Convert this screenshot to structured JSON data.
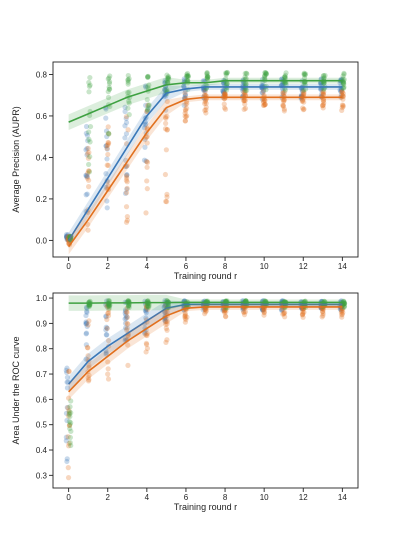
{
  "colors": {
    "blue": "#3a78b8",
    "orange": "#e1701e",
    "green": "#3ea141"
  },
  "chart_data": [
    {
      "type": "scatter",
      "xlabel": "Training round r",
      "ylabel": "Average Precision (AUPR)",
      "xlim": [
        -0.8,
        14.8
      ],
      "ylim": [
        -0.08,
        0.86
      ],
      "xticks": [
        0,
        2,
        4,
        6,
        8,
        10,
        12,
        14
      ],
      "yticks": [
        0.0,
        0.2,
        0.4,
        0.6,
        0.8
      ],
      "grid": false,
      "series": [
        {
          "color": "blue",
          "x": [
            0,
            1,
            2,
            3,
            4,
            5,
            6,
            7,
            8,
            9,
            10,
            11,
            12,
            13,
            14
          ],
          "mean": [
            0.0,
            0.15,
            0.3,
            0.45,
            0.6,
            0.71,
            0.73,
            0.74,
            0.74,
            0.74,
            0.74,
            0.74,
            0.74,
            0.74,
            0.74
          ],
          "scatter_range": [
            [
              0.0,
              0.03
            ],
            [
              0.05,
              0.55
            ],
            [
              0.1,
              0.65
            ],
            [
              0.2,
              0.72
            ],
            [
              0.35,
              0.75
            ],
            [
              0.6,
              0.78
            ],
            [
              0.65,
              0.78
            ],
            [
              0.68,
              0.78
            ],
            [
              0.68,
              0.78
            ],
            [
              0.68,
              0.78
            ],
            [
              0.68,
              0.78
            ],
            [
              0.68,
              0.78
            ],
            [
              0.68,
              0.78
            ],
            [
              0.68,
              0.78
            ],
            [
              0.68,
              0.78
            ]
          ]
        },
        {
          "color": "orange",
          "x": [
            0,
            1,
            2,
            3,
            4,
            5,
            6,
            7,
            8,
            9,
            10,
            11,
            12,
            13,
            14
          ],
          "mean": [
            -0.03,
            0.1,
            0.24,
            0.38,
            0.52,
            0.64,
            0.68,
            0.69,
            0.69,
            0.69,
            0.69,
            0.69,
            0.69,
            0.69,
            0.69
          ],
          "scatter_range": [
            [
              -0.03,
              0.02
            ],
            [
              0.0,
              0.45
            ],
            [
              0.05,
              0.55
            ],
            [
              0.05,
              0.62
            ],
            [
              0.1,
              0.68
            ],
            [
              0.12,
              0.7
            ],
            [
              0.55,
              0.72
            ],
            [
              0.6,
              0.72
            ],
            [
              0.62,
              0.72
            ],
            [
              0.62,
              0.72
            ],
            [
              0.62,
              0.72
            ],
            [
              0.62,
              0.72
            ],
            [
              0.62,
              0.72
            ],
            [
              0.62,
              0.72
            ],
            [
              0.62,
              0.72
            ]
          ]
        },
        {
          "color": "green",
          "x": [
            0,
            1,
            2,
            3,
            4,
            5,
            6,
            7,
            8,
            9,
            10,
            11,
            12,
            13,
            14
          ],
          "mean": [
            0.57,
            0.61,
            0.65,
            0.69,
            0.72,
            0.75,
            0.76,
            0.76,
            0.77,
            0.77,
            0.77,
            0.77,
            0.77,
            0.77,
            0.77
          ],
          "scatter_range": [
            [
              0.0,
              0.02
            ],
            [
              0.3,
              0.8
            ],
            [
              0.45,
              0.8
            ],
            [
              0.55,
              0.8
            ],
            [
              0.6,
              0.8
            ],
            [
              0.7,
              0.81
            ],
            [
              0.72,
              0.81
            ],
            [
              0.72,
              0.81
            ],
            [
              0.72,
              0.81
            ],
            [
              0.72,
              0.81
            ],
            [
              0.72,
              0.81
            ],
            [
              0.72,
              0.81
            ],
            [
              0.72,
              0.81
            ],
            [
              0.72,
              0.81
            ],
            [
              0.72,
              0.81
            ]
          ]
        }
      ]
    },
    {
      "type": "scatter",
      "xlabel": "Training round r",
      "ylabel": "Area Under the ROC curve",
      "xlim": [
        -0.8,
        14.8
      ],
      "ylim": [
        0.25,
        1.02
      ],
      "xticks": [
        0,
        2,
        4,
        6,
        8,
        10,
        12,
        14
      ],
      "yticks": [
        0.3,
        0.4,
        0.5,
        0.6,
        0.7,
        0.8,
        0.9,
        1.0
      ],
      "grid": false,
      "series": [
        {
          "color": "blue",
          "x": [
            0,
            1,
            2,
            3,
            4,
            5,
            6,
            7,
            8,
            9,
            10,
            11,
            12,
            13,
            14
          ],
          "mean": [
            0.66,
            0.75,
            0.81,
            0.86,
            0.91,
            0.96,
            0.975,
            0.975,
            0.975,
            0.975,
            0.975,
            0.975,
            0.975,
            0.975,
            0.975
          ],
          "scatter_range": [
            [
              0.3,
              0.75
            ],
            [
              0.7,
              0.99
            ],
            [
              0.75,
              0.99
            ],
            [
              0.8,
              0.99
            ],
            [
              0.85,
              0.99
            ],
            [
              0.9,
              0.99
            ],
            [
              0.95,
              0.99
            ],
            [
              0.95,
              0.99
            ],
            [
              0.95,
              0.99
            ],
            [
              0.95,
              0.99
            ],
            [
              0.95,
              0.99
            ],
            [
              0.95,
              0.99
            ],
            [
              0.95,
              0.99
            ],
            [
              0.95,
              0.99
            ],
            [
              0.95,
              0.99
            ]
          ]
        },
        {
          "color": "orange",
          "x": [
            0,
            1,
            2,
            3,
            4,
            5,
            6,
            7,
            8,
            9,
            10,
            11,
            12,
            13,
            14
          ],
          "mean": [
            0.63,
            0.71,
            0.77,
            0.83,
            0.88,
            0.93,
            0.96,
            0.965,
            0.965,
            0.965,
            0.965,
            0.965,
            0.965,
            0.965,
            0.965
          ],
          "scatter_range": [
            [
              0.28,
              0.72
            ],
            [
              0.6,
              0.97
            ],
            [
              0.65,
              0.97
            ],
            [
              0.7,
              0.97
            ],
            [
              0.75,
              0.98
            ],
            [
              0.82,
              0.98
            ],
            [
              0.9,
              0.98
            ],
            [
              0.92,
              0.98
            ],
            [
              0.92,
              0.98
            ],
            [
              0.92,
              0.98
            ],
            [
              0.92,
              0.98
            ],
            [
              0.92,
              0.98
            ],
            [
              0.92,
              0.98
            ],
            [
              0.92,
              0.98
            ],
            [
              0.92,
              0.98
            ]
          ]
        },
        {
          "color": "green",
          "x": [
            0,
            1,
            2,
            3,
            4,
            5,
            6,
            7,
            8,
            9,
            10,
            11,
            12,
            13,
            14
          ],
          "mean": [
            0.98,
            0.98,
            0.981,
            0.981,
            0.982,
            0.982,
            0.983,
            0.983,
            0.983,
            0.983,
            0.983,
            0.983,
            0.983,
            0.983,
            0.983
          ],
          "scatter_range": [
            [
              0.4,
              0.6
            ],
            [
              0.96,
              0.99
            ],
            [
              0.96,
              0.99
            ],
            [
              0.96,
              0.99
            ],
            [
              0.96,
              0.99
            ],
            [
              0.96,
              0.99
            ],
            [
              0.96,
              0.99
            ],
            [
              0.96,
              0.99
            ],
            [
              0.96,
              0.99
            ],
            [
              0.96,
              0.99
            ],
            [
              0.96,
              0.99
            ],
            [
              0.96,
              0.99
            ],
            [
              0.96,
              0.99
            ],
            [
              0.96,
              0.99
            ],
            [
              0.96,
              0.99
            ]
          ]
        }
      ]
    }
  ]
}
